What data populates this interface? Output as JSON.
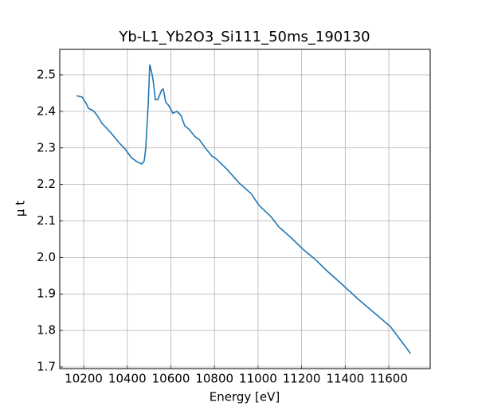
{
  "chart_data": {
    "type": "line",
    "title": "Yb-L1_Yb2O3_Si111_50ms_190130",
    "x_label": "Energy [eV]",
    "y_label": "μ t",
    "color": "#1f77b4",
    "grid": true,
    "x": [
      10167,
      10193,
      10211,
      10222,
      10244,
      10262,
      10284,
      10302,
      10328,
      10364,
      10390,
      10419,
      10445,
      10467,
      10478,
      10485,
      10496,
      10503,
      10511,
      10518,
      10529,
      10540,
      10558,
      10565,
      10576,
      10591,
      10609,
      10628,
      10646,
      10664,
      10682,
      10712,
      10730,
      10759,
      10788,
      10810,
      10858,
      10913,
      10968,
      11004,
      11059,
      11095,
      11150,
      11205,
      11260,
      11315,
      11388,
      11461,
      11534,
      11607,
      11700
    ],
    "values": [
      2.443,
      2.439,
      2.422,
      2.408,
      2.402,
      2.389,
      2.367,
      2.356,
      2.339,
      2.313,
      2.297,
      2.273,
      2.262,
      2.256,
      2.265,
      2.302,
      2.422,
      2.528,
      2.509,
      2.487,
      2.432,
      2.432,
      2.459,
      2.461,
      2.426,
      2.415,
      2.395,
      2.4,
      2.389,
      2.36,
      2.352,
      2.33,
      2.323,
      2.299,
      2.278,
      2.269,
      2.241,
      2.204,
      2.175,
      2.143,
      2.112,
      2.084,
      2.055,
      2.023,
      1.996,
      1.964,
      1.925,
      1.885,
      1.848,
      1.811,
      1.737
    ],
    "xlim": [
      10090,
      11790
    ],
    "ylim": [
      1.6956,
      2.5698
    ],
    "xticks": [
      10200,
      10400,
      10600,
      10800,
      11000,
      11200,
      11400,
      11600
    ],
    "yticks": [
      1.7,
      1.8,
      1.9,
      {
        "value": 2,
        "label": "2.0"
      },
      2.1,
      2.2,
      2.3,
      2.4,
      2.5
    ]
  }
}
